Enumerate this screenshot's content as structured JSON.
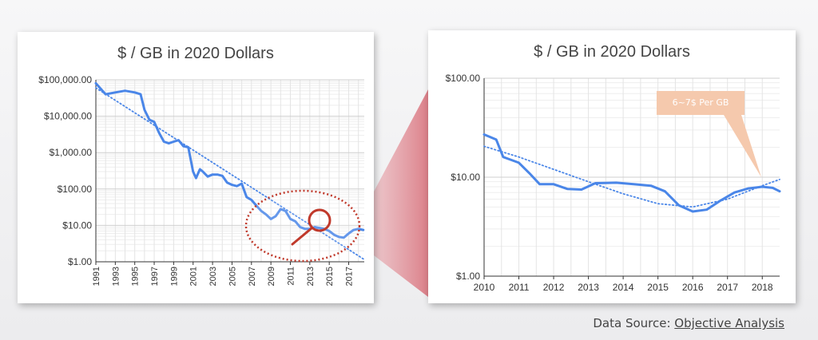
{
  "chart_data": [
    {
      "type": "line",
      "title": "$ / GB in 2020 Dollars",
      "y_scale": "log",
      "ylim": [
        1,
        100000
      ],
      "y_ticks": [
        1,
        10,
        100,
        1000,
        10000,
        100000
      ],
      "y_tick_labels": [
        "$1.00",
        "$10.00",
        "$100.00",
        "$1,000.00",
        "$10,000.00",
        "$100,000.00"
      ],
      "xlim": [
        1991,
        2018.6
      ],
      "x_tick_labels": [
        "1991",
        "1993",
        "1995",
        "1997",
        "1999",
        "2001",
        "2003",
        "2005",
        "2007",
        "2009",
        "2011",
        "2013",
        "2015",
        "2017"
      ],
      "grid": true,
      "series": [
        {
          "style": "solid",
          "color": "#4a86e8",
          "x": [
            1991,
            1992,
            1993,
            1994,
            1995,
            1995.6,
            1996,
            1996.5,
            1997,
            1997.5,
            1998,
            1998.5,
            1999,
            1999.5,
            2000,
            2000.5,
            2001,
            2001.3,
            2001.7,
            2002,
            2002.5,
            2003,
            2003.5,
            2004,
            2004.5,
            2005,
            2005.5,
            2006,
            2006.5,
            2007,
            2007.5,
            2008,
            2008.5,
            2009,
            2009.5,
            2010,
            2010.5,
            2011,
            2011.5,
            2012,
            2012.5,
            2013,
            2013.5,
            2014,
            2014.5,
            2015,
            2015.5,
            2016,
            2016.5,
            2017,
            2017.5,
            2018,
            2018.5
          ],
          "y": [
            80000,
            40000,
            45000,
            50000,
            45000,
            40000,
            15000,
            8000,
            7000,
            3500,
            2000,
            1800,
            2000,
            2200,
            1500,
            1400,
            300,
            200,
            350,
            300,
            220,
            250,
            250,
            230,
            150,
            130,
            120,
            140,
            60,
            50,
            35,
            25,
            20,
            15,
            18,
            28,
            25,
            15,
            13,
            9,
            8,
            8,
            9,
            8.5,
            8,
            7,
            5.5,
            4.8,
            4.6,
            6,
            7.5,
            8,
            7.5
          ]
        },
        {
          "style": "dotted",
          "color": "#4a86e8",
          "x": [
            1991,
            2018.5
          ],
          "y": [
            60000,
            1.2
          ]
        }
      ],
      "annotation": "magnifier circle around 2009–2017"
    },
    {
      "type": "line",
      "title": "$ / GB in 2020 Dollars",
      "y_scale": "log",
      "ylim": [
        1,
        100
      ],
      "y_ticks": [
        1,
        10,
        100
      ],
      "y_tick_labels": [
        "$1.00",
        "$10.00",
        "$100.00"
      ],
      "xlim": [
        2010,
        2018.5
      ],
      "x_tick_labels": [
        "2010",
        "2011",
        "2012",
        "2013",
        "2014",
        "2015",
        "2016",
        "2017",
        "2018"
      ],
      "grid": true,
      "series": [
        {
          "style": "solid",
          "color": "#4a86e8",
          "x": [
            2010,
            2010.35,
            2010.55,
            2011,
            2011.3,
            2011.6,
            2012,
            2012.4,
            2012.8,
            2013.2,
            2013.8,
            2014.3,
            2014.8,
            2015.2,
            2015.6,
            2016,
            2016.4,
            2016.8,
            2017.2,
            2017.6,
            2018,
            2018.3,
            2018.5
          ],
          "y": [
            27,
            24,
            16,
            14,
            11,
            8.5,
            8.5,
            7.6,
            7.5,
            8.7,
            8.8,
            8.5,
            8.2,
            7.2,
            5.2,
            4.5,
            4.7,
            5.8,
            7.0,
            7.7,
            8.0,
            7.8,
            7.2
          ]
        },
        {
          "style": "dotted",
          "color": "#4a86e8",
          "x": [
            2010,
            2011,
            2012,
            2013,
            2014,
            2015,
            2016,
            2017,
            2018,
            2018.5
          ],
          "y": [
            20.5,
            16,
            12,
            9,
            6.8,
            5.4,
            5.0,
            6.0,
            8.2,
            9.5
          ]
        }
      ],
      "callout": "6~7$ Per GB"
    }
  ],
  "footer": {
    "source_prefix": "Data Source:",
    "source_link": "Objective Analysis"
  },
  "colors": {
    "line": "#4a86e8",
    "magnifier": "#c0392b",
    "callout_bg": "#f5c9ad",
    "connector": "#e3a2a8"
  }
}
